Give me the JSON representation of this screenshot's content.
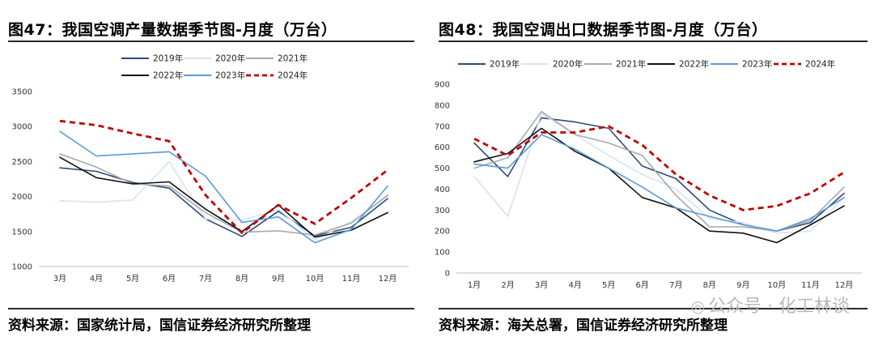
{
  "left": {
    "title": "图47：我国空调产量数据季节图-月度（万台）",
    "source": "资料来源：国家统计局，国信证券经济研究所整理"
  },
  "right": {
    "title": "图48：我国空调出口数据季节图-月度（万台）",
    "source": "资料来源：海关总署，国信证券经济研究所整理"
  },
  "watermark": {
    "text": "公众号 · 化工林谈",
    "icon": "wechat-icon"
  },
  "chart_data": [
    {
      "type": "line",
      "title": "图47：我国空调产量数据季节图-月度（万台）",
      "categories": [
        "3月",
        "4月",
        "5月",
        "6月",
        "7月",
        "8月",
        "9月",
        "10月",
        "11月",
        "12月"
      ],
      "ylim": [
        1000,
        3500
      ],
      "yticks": [
        1000,
        1500,
        2000,
        2500,
        3000,
        3500
      ],
      "legend": "top-center",
      "grid": false,
      "series": [
        {
          "name": "2019年",
          "color": "#2e4a7d",
          "dash": "",
          "width": 1.6,
          "values": [
            2410,
            2360,
            2200,
            2120,
            1680,
            1430,
            1790,
            1440,
            1560,
            1970
          ]
        },
        {
          "name": "2020年",
          "color": "#d6e3f1",
          "dash": "",
          "width": 1.6,
          "values": [
            1940,
            1920,
            1950,
            2500,
            1680,
            1660,
            1820,
            1380,
            1640,
            2000
          ]
        },
        {
          "name": "2021年",
          "color": "#a9a9a9",
          "dash": "",
          "width": 1.6,
          "values": [
            2610,
            2420,
            2180,
            2150,
            1770,
            1490,
            1510,
            1450,
            1620,
            2020
          ]
        },
        {
          "name": "2022年",
          "color": "#111111",
          "dash": "",
          "width": 1.6,
          "values": [
            2560,
            2270,
            2180,
            2210,
            1820,
            1500,
            1880,
            1420,
            1520,
            1770
          ]
        },
        {
          "name": "2023年",
          "color": "#5b9bd5",
          "dash": "",
          "width": 1.6,
          "values": [
            2930,
            2580,
            2610,
            2640,
            2290,
            1630,
            1710,
            1340,
            1530,
            2150
          ]
        },
        {
          "name": "2024年",
          "color": "#c00000",
          "dash": "7,5",
          "width": 2.8,
          "values": [
            3080,
            3020,
            2900,
            2790,
            2020,
            1480,
            1880,
            1610,
            1980,
            2380
          ]
        }
      ]
    },
    {
      "type": "line",
      "title": "图48：我国空调出口数据季节图-月度（万台）",
      "categories": [
        "1月",
        "2月",
        "3月",
        "4月",
        "5月",
        "6月",
        "7月",
        "8月",
        "9月",
        "10月",
        "11月",
        "12月"
      ],
      "ylim": [
        0,
        900
      ],
      "yticks": [
        0,
        100,
        200,
        300,
        400,
        500,
        600,
        700,
        800,
        900
      ],
      "legend": "top",
      "grid": false,
      "series": [
        {
          "name": "2019年",
          "color": "#2e4a7d",
          "dash": "",
          "width": 1.6,
          "values": [
            620,
            460,
            740,
            720,
            690,
            510,
            450,
            300,
            230,
            200,
            240,
            380
          ]
        },
        {
          "name": "2020年",
          "color": "#d6e3f1",
          "dash": "",
          "width": 1.6,
          "values": [
            460,
            270,
            760,
            660,
            560,
            470,
            400,
            260,
            240,
            190,
            200,
            360
          ]
        },
        {
          "name": "2021年",
          "color": "#a9a9a9",
          "dash": "",
          "width": 1.6,
          "values": [
            500,
            550,
            770,
            660,
            620,
            560,
            370,
            220,
            220,
            200,
            250,
            410
          ]
        },
        {
          "name": "2022年",
          "color": "#111111",
          "dash": "",
          "width": 1.6,
          "values": [
            530,
            570,
            690,
            580,
            500,
            360,
            310,
            200,
            190,
            145,
            230,
            320
          ]
        },
        {
          "name": "2023年",
          "color": "#5b9bd5",
          "dash": "",
          "width": 1.6,
          "values": [
            520,
            500,
            660,
            590,
            500,
            410,
            310,
            270,
            230,
            200,
            260,
            360
          ]
        },
        {
          "name": "2024年",
          "color": "#c00000",
          "dash": "7,5",
          "width": 2.8,
          "values": [
            640,
            560,
            670,
            670,
            700,
            610,
            470,
            370,
            300,
            320,
            380,
            480
          ]
        }
      ]
    }
  ]
}
